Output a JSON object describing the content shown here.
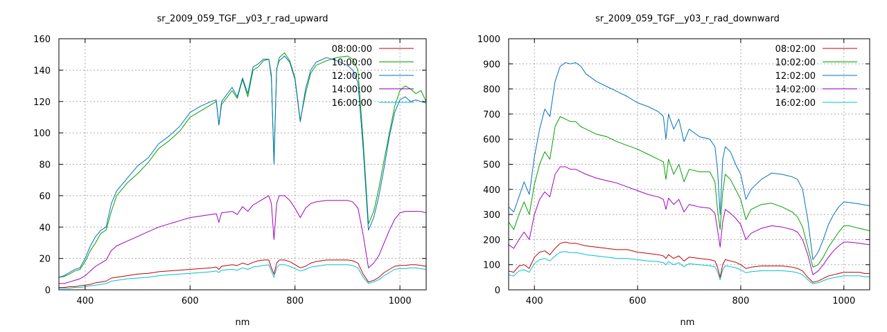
{
  "chart_data": [
    {
      "type": "line",
      "title": "sr_2009_059_TGF__y03_r_rad_upward",
      "xlabel": "nm",
      "ylabel": "",
      "xlim": [
        350,
        1050
      ],
      "ylim": [
        0,
        160
      ],
      "xticks": [
        400,
        600,
        800,
        1000
      ],
      "yticks": [
        0,
        20,
        40,
        60,
        80,
        100,
        120,
        140,
        160
      ],
      "grid": true,
      "legend_position": "top-right",
      "x": [
        350,
        360,
        370,
        380,
        390,
        400,
        410,
        420,
        430,
        440,
        450,
        460,
        480,
        500,
        520,
        540,
        560,
        580,
        600,
        620,
        640,
        650,
        655,
        660,
        680,
        690,
        700,
        710,
        720,
        730,
        740,
        750,
        755,
        760,
        765,
        770,
        780,
        790,
        800,
        810,
        820,
        830,
        840,
        860,
        880,
        900,
        910,
        920,
        930,
        940,
        950,
        960,
        970,
        980,
        990,
        1000,
        1010,
        1020,
        1030,
        1040,
        1050
      ],
      "series": [
        {
          "name": "08:00:00",
          "color": "#c00000",
          "values": [
            1.5,
            1.5,
            2,
            2,
            2.5,
            3,
            3.5,
            4.5,
            5,
            5.5,
            7.5,
            8,
            9,
            10,
            10.5,
            11.5,
            12,
            12.5,
            13,
            13.5,
            14,
            14.5,
            13,
            15,
            16,
            15.5,
            17,
            16,
            17.5,
            18.5,
            19,
            19,
            14,
            10,
            17,
            19,
            19,
            18,
            16,
            14,
            15,
            17,
            18,
            19,
            19,
            19,
            18.5,
            17,
            10,
            5,
            6,
            8,
            11,
            13,
            15,
            15.5,
            15.5,
            16,
            16,
            15.5,
            15
          ]
        },
        {
          "name": "10:00:00",
          "color": "#00a000",
          "values": [
            8,
            8.5,
            10,
            12,
            13,
            18,
            25,
            30,
            36,
            38,
            50,
            60,
            68,
            74,
            81,
            90,
            95,
            101,
            110,
            114,
            118,
            120,
            105,
            118,
            127,
            122,
            134,
            123,
            140,
            142,
            146,
            147,
            135,
            82,
            140,
            148,
            151,
            146,
            135,
            108,
            125,
            138,
            143,
            146,
            148,
            149,
            147,
            140,
            95,
            42,
            50,
            65,
            83,
            100,
            117,
            127,
            130,
            128,
            125,
            127,
            120
          ]
        },
        {
          "name": "12:00:00",
          "color": "#0070c0",
          "values": [
            8,
            9,
            11,
            13,
            14,
            20,
            28,
            34,
            38,
            40,
            55,
            63,
            71,
            79,
            84,
            93,
            98,
            104,
            113,
            117,
            120,
            121,
            105,
            120,
            129,
            123,
            135,
            125,
            142,
            144,
            147,
            147,
            137,
            80,
            141,
            146,
            149,
            145,
            134,
            107,
            128,
            140,
            145,
            148,
            146,
            143,
            140,
            132,
            90,
            38,
            46,
            60,
            78,
            98,
            113,
            121,
            123,
            120,
            121,
            120,
            119
          ]
        },
        {
          "name": "14:00:00",
          "color": "#a000c0",
          "values": [
            4,
            4,
            5,
            6,
            7,
            9,
            12,
            15,
            17,
            19,
            25,
            28,
            31,
            34,
            37,
            40,
            42,
            44,
            46,
            47,
            48,
            48.5,
            43,
            49,
            50,
            48,
            53,
            50,
            54,
            56,
            58,
            60,
            55,
            32,
            55,
            60,
            60,
            57,
            52,
            46,
            52,
            55,
            56,
            57,
            57,
            57,
            56,
            52,
            35,
            14,
            17,
            22,
            30,
            38,
            45,
            49,
            50,
            50,
            50,
            50,
            49
          ]
        },
        {
          "name": "16:00:00",
          "color": "#00c0d0",
          "values": [
            1,
            1,
            1,
            1.5,
            1.5,
            2,
            2.5,
            3,
            3.5,
            4,
            5.5,
            6,
            7,
            7.5,
            8,
            9,
            9.5,
            10,
            10.5,
            11,
            11.5,
            12,
            11,
            12.5,
            13,
            12.5,
            14,
            13,
            14.5,
            15,
            15.5,
            16,
            12,
            8,
            14,
            16,
            16,
            15,
            13.5,
            12,
            13,
            14.5,
            15,
            16,
            16,
            16,
            15.5,
            14,
            8,
            4,
            5,
            6.5,
            9,
            11,
            13,
            13.5,
            13.5,
            14,
            14,
            13.5,
            13
          ]
        }
      ]
    },
    {
      "type": "line",
      "title": "sr_2009_059_TGF__y03_r_rad_downward",
      "xlabel": "nm",
      "ylabel": "",
      "xlim": [
        350,
        1050
      ],
      "ylim": [
        0,
        1000
      ],
      "xticks": [
        400,
        600,
        800,
        1000
      ],
      "yticks": [
        0,
        100,
        200,
        300,
        400,
        500,
        600,
        700,
        800,
        900,
        1000
      ],
      "grid": true,
      "legend_position": "top-right",
      "x": [
        350,
        360,
        370,
        380,
        390,
        400,
        410,
        420,
        430,
        440,
        450,
        460,
        470,
        480,
        490,
        500,
        520,
        540,
        560,
        580,
        600,
        620,
        640,
        650,
        655,
        660,
        670,
        680,
        690,
        700,
        720,
        740,
        750,
        755,
        760,
        765,
        770,
        780,
        790,
        800,
        810,
        820,
        840,
        860,
        880,
        900,
        910,
        920,
        930,
        940,
        950,
        960,
        970,
        980,
        990,
        1000,
        1010,
        1020,
        1030,
        1040,
        1050
      ],
      "series": [
        {
          "name": "08:02:00",
          "color": "#c00000",
          "values": [
            75,
            70,
            95,
            100,
            85,
            130,
            150,
            155,
            140,
            165,
            185,
            190,
            185,
            185,
            180,
            175,
            170,
            165,
            160,
            160,
            150,
            145,
            140,
            135,
            125,
            140,
            125,
            135,
            115,
            130,
            125,
            120,
            115,
            90,
            50,
            100,
            120,
            115,
            110,
            100,
            85,
            90,
            95,
            95,
            95,
            90,
            85,
            75,
            50,
            30,
            35,
            45,
            55,
            60,
            65,
            70,
            70,
            70,
            70,
            65,
            65
          ]
        },
        {
          "name": "10:02:00",
          "color": "#00a000",
          "values": [
            270,
            240,
            300,
            350,
            300,
            420,
            500,
            550,
            520,
            650,
            690,
            680,
            670,
            670,
            650,
            640,
            620,
            610,
            590,
            575,
            560,
            540,
            520,
            510,
            440,
            520,
            460,
            500,
            430,
            480,
            470,
            470,
            430,
            320,
            240,
            390,
            460,
            440,
            400,
            360,
            280,
            320,
            340,
            345,
            330,
            310,
            290,
            250,
            170,
            90,
            100,
            130,
            170,
            200,
            230,
            255,
            255,
            250,
            245,
            240,
            235
          ]
        },
        {
          "name": "12:02:00",
          "color": "#0070c0",
          "values": [
            330,
            310,
            370,
            430,
            380,
            530,
            640,
            720,
            690,
            830,
            890,
            905,
            900,
            905,
            890,
            860,
            830,
            810,
            790,
            770,
            745,
            730,
            710,
            690,
            600,
            700,
            640,
            680,
            590,
            640,
            610,
            600,
            570,
            480,
            300,
            520,
            570,
            550,
            500,
            460,
            360,
            400,
            440,
            465,
            460,
            450,
            440,
            400,
            280,
            120,
            150,
            200,
            260,
            300,
            330,
            350,
            348,
            345,
            342,
            338,
            335
          ]
        },
        {
          "name": "14:02:00",
          "color": "#a000c0",
          "values": [
            180,
            165,
            200,
            230,
            200,
            300,
            360,
            390,
            370,
            460,
            490,
            490,
            480,
            480,
            470,
            460,
            445,
            435,
            425,
            410,
            395,
            380,
            370,
            360,
            320,
            365,
            340,
            360,
            310,
            340,
            330,
            325,
            305,
            240,
            170,
            270,
            320,
            305,
            285,
            260,
            200,
            225,
            245,
            255,
            250,
            240,
            230,
            200,
            140,
            60,
            75,
            100,
            130,
            155,
            175,
            190,
            190,
            188,
            185,
            182,
            180
          ]
        },
        {
          "name": "16:02:00",
          "color": "#00c0d0",
          "values": [
            60,
            55,
            75,
            80,
            70,
            105,
            120,
            125,
            115,
            135,
            150,
            152,
            148,
            148,
            145,
            140,
            135,
            130,
            125,
            125,
            120,
            115,
            112,
            108,
            100,
            112,
            100,
            108,
            92,
            104,
            100,
            96,
            92,
            72,
            40,
            80,
            96,
            92,
            88,
            80,
            68,
            72,
            76,
            76,
            76,
            72,
            68,
            60,
            40,
            24,
            28,
            36,
            44,
            48,
            52,
            56,
            56,
            56,
            56,
            52,
            52
          ]
        }
      ]
    }
  ]
}
